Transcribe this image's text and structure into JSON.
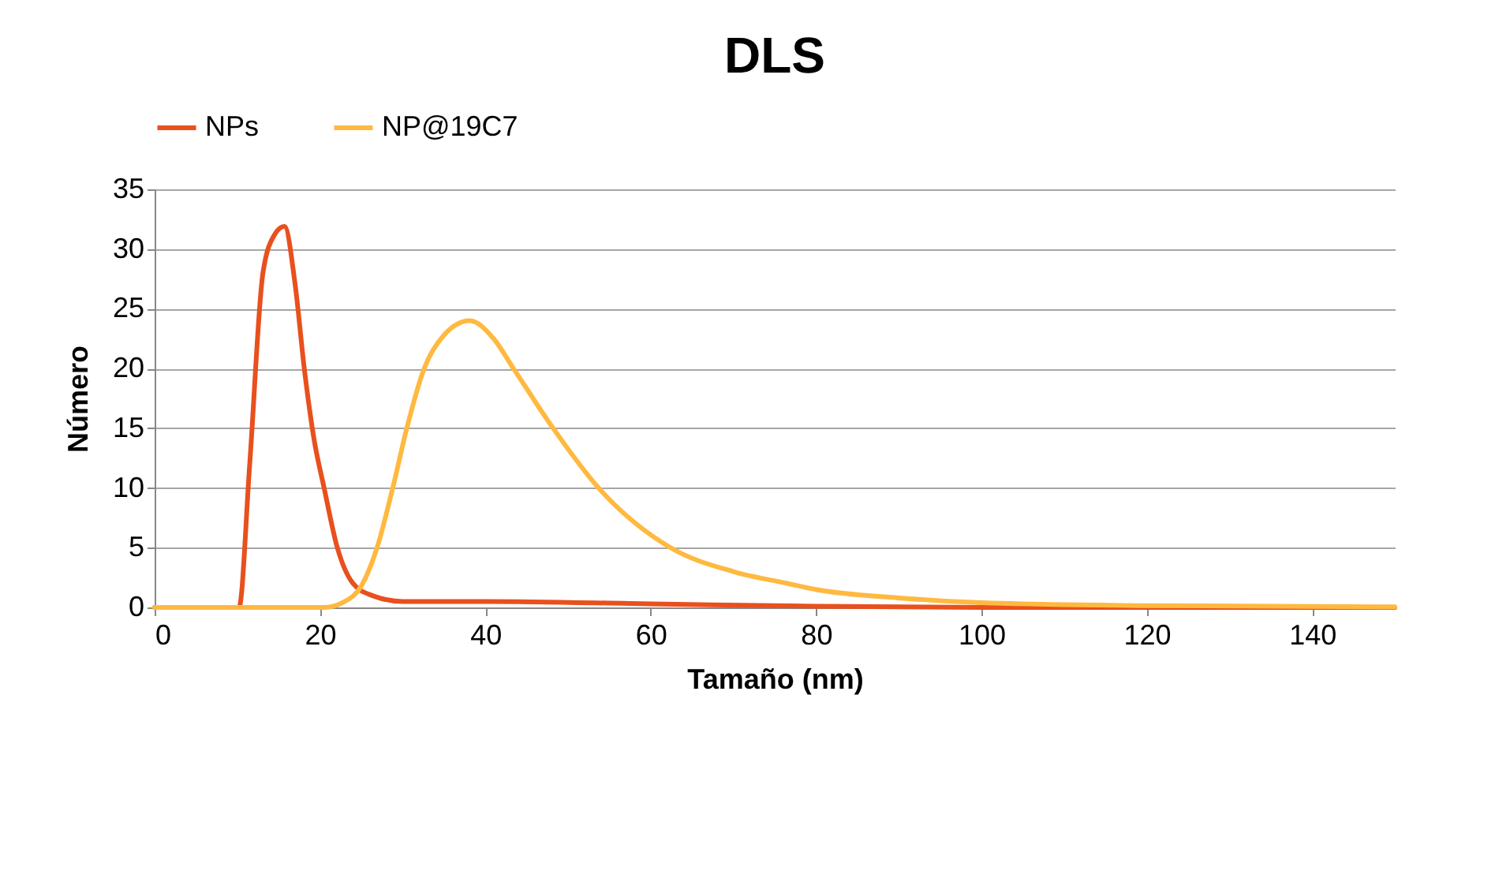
{
  "chart_data": {
    "type": "line",
    "title": "DLS",
    "xlabel": "Tamaño (nm)",
    "ylabel": "Número",
    "xlim": [
      0,
      150
    ],
    "xticks": [
      0,
      20,
      40,
      60,
      80,
      100,
      120,
      140
    ],
    "ylim": [
      0,
      35
    ],
    "yticks": [
      0,
      5,
      10,
      15,
      20,
      25,
      30,
      35
    ],
    "grid": "y",
    "legend": "top",
    "line_style": "solid",
    "marker": "none",
    "series": [
      {
        "name": "NPs",
        "color": "#e8501e",
        "x": [
          0,
          5,
          9,
          10.2,
          11.5,
          13.1,
          14.5,
          15.7,
          17,
          18.1,
          19.3,
          20.5,
          22.1,
          24,
          26.3,
          30,
          40,
          60,
          80,
          100,
          120,
          150
        ],
        "values": [
          0,
          0,
          0,
          0,
          12,
          28,
          31.2,
          31.9,
          27,
          20,
          14,
          10,
          5,
          2,
          1,
          0.5,
          0.5,
          0.3,
          0.1,
          0,
          0,
          0
        ]
      },
      {
        "name": "NP@19C7",
        "color": "#ffb940",
        "x": [
          0,
          10,
          18,
          20.5,
          23,
          25,
          26.9,
          28.8,
          30.5,
          32.6,
          35,
          38.1,
          41,
          43.4,
          48.2,
          53.7,
          62.4,
          70,
          76.6,
          80,
          90,
          100,
          120,
          150
        ],
        "values": [
          0,
          0,
          0,
          0,
          0.5,
          1.8,
          5,
          10,
          15,
          20,
          22.8,
          24,
          22.5,
          20,
          15,
          10,
          5,
          3,
          2,
          1.5,
          0.8,
          0.4,
          0.15,
          0.05
        ]
      }
    ]
  }
}
